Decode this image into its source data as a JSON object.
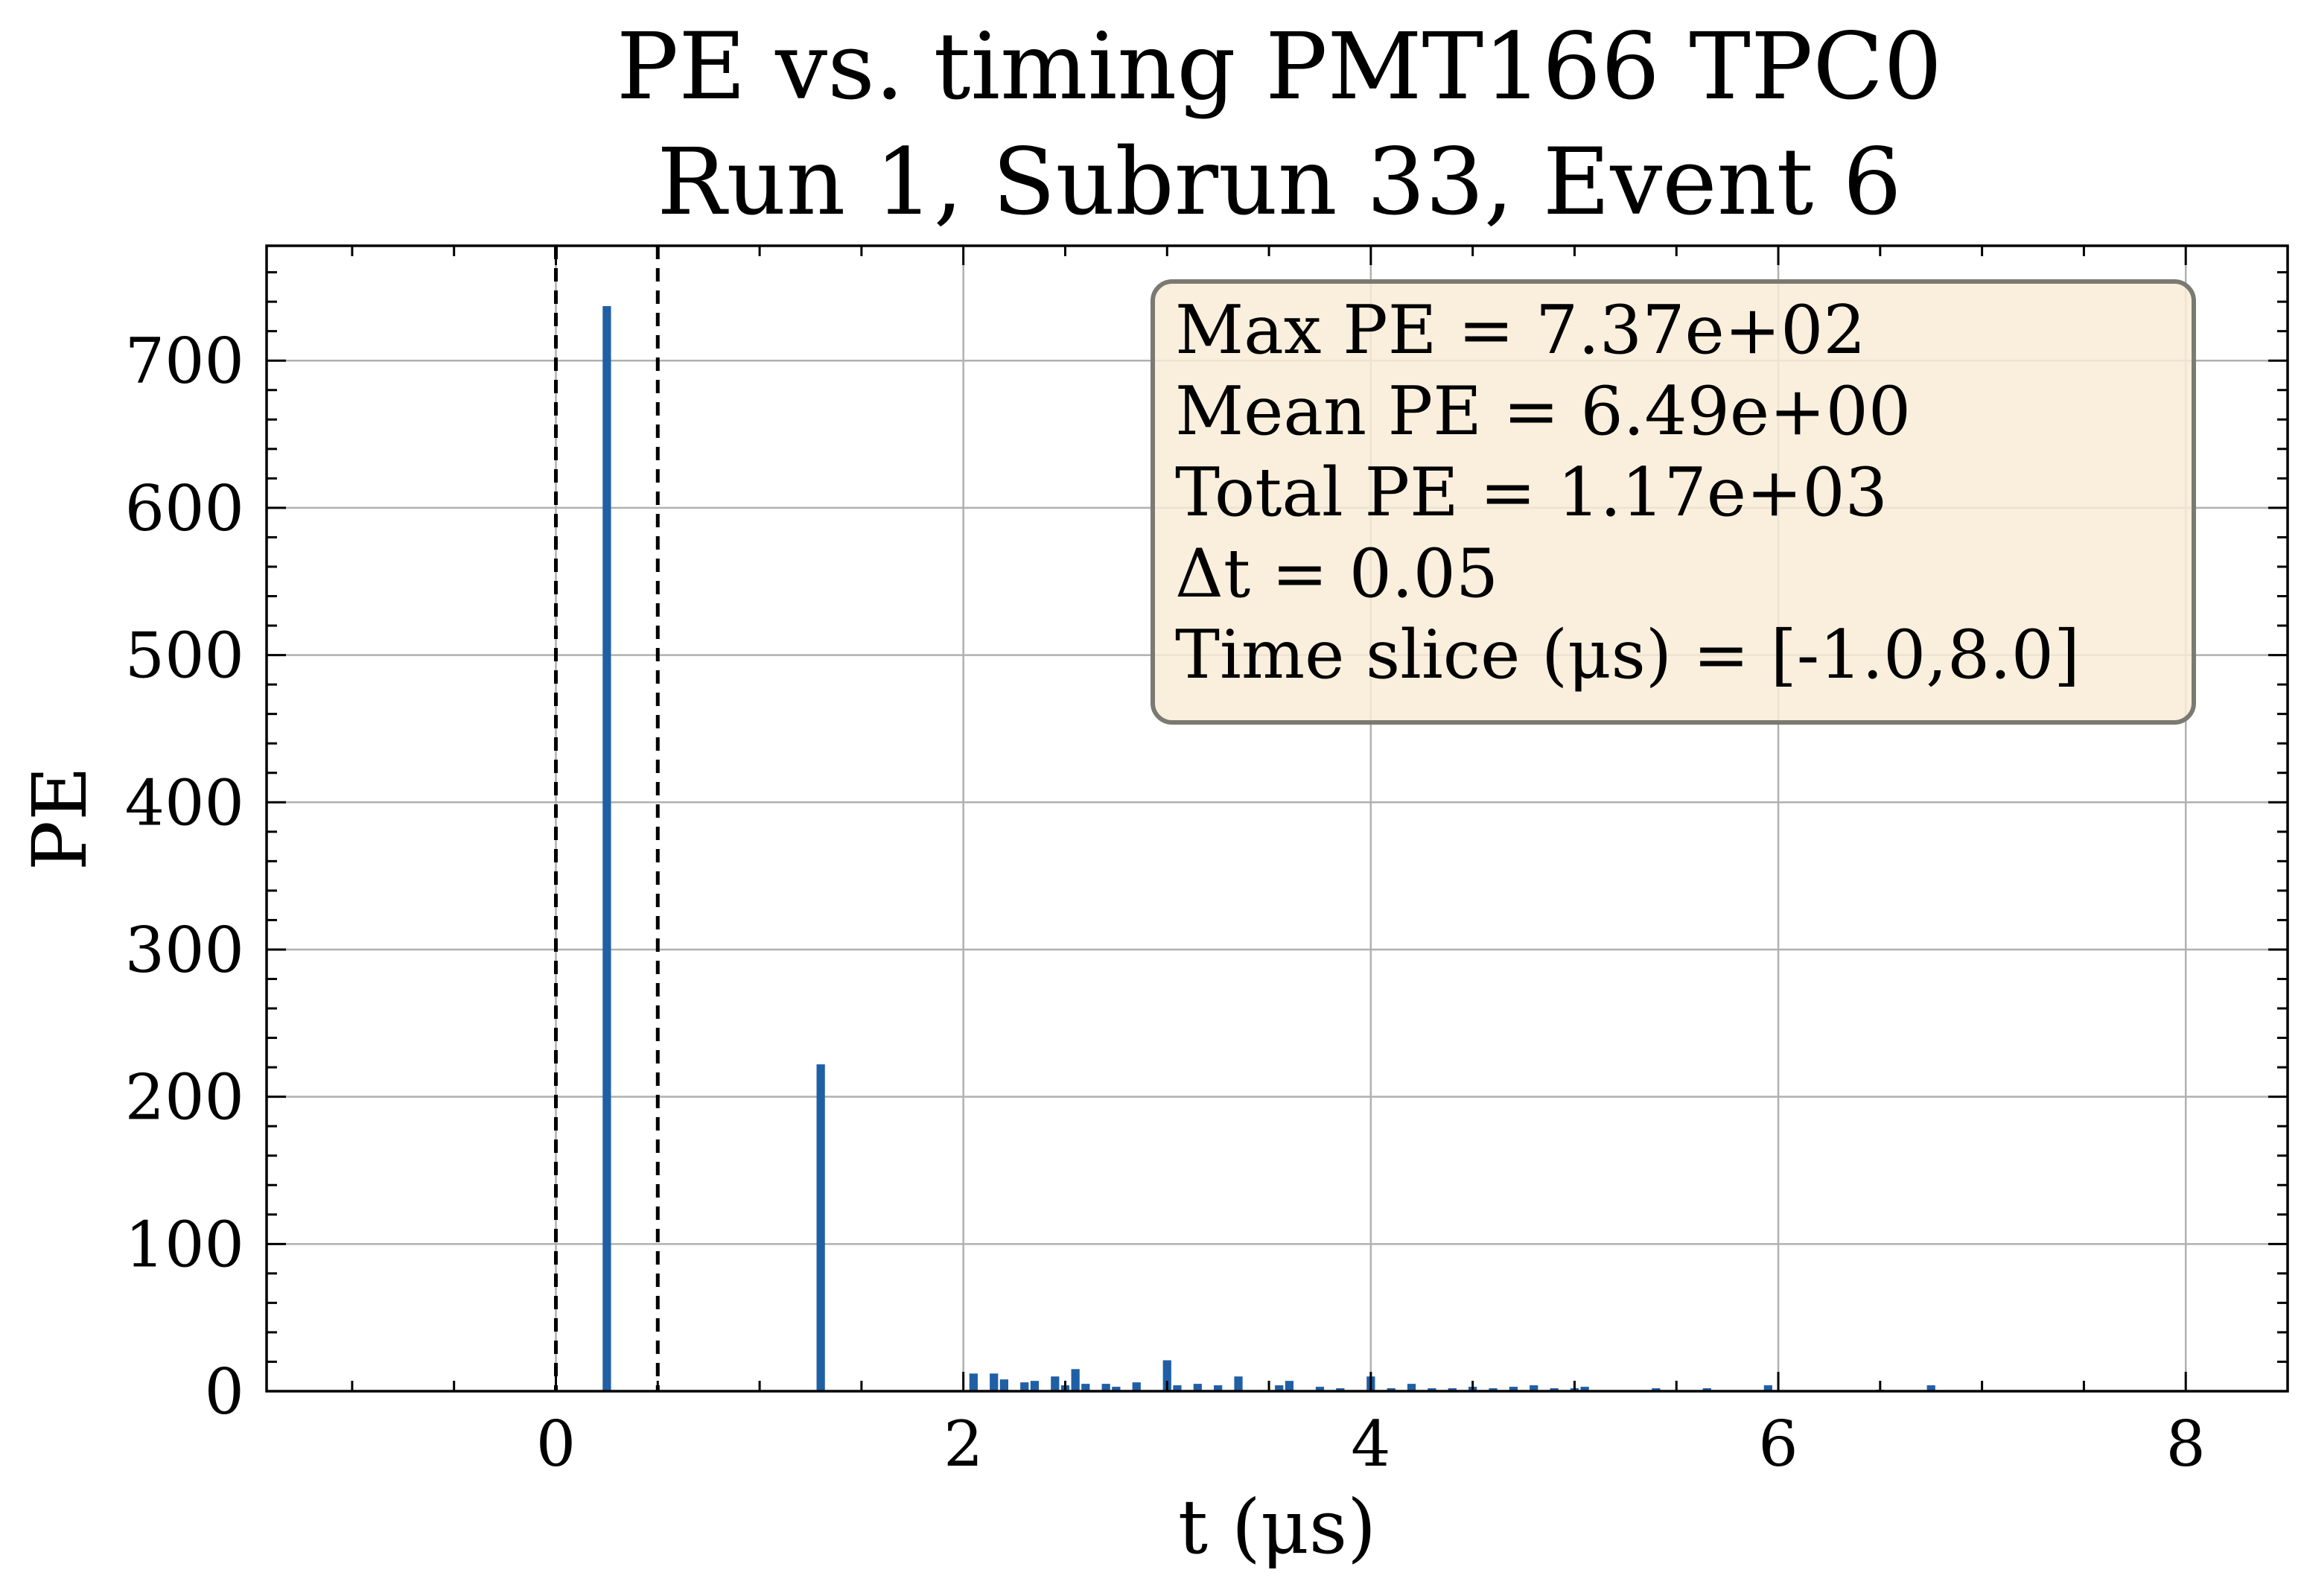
{
  "chart_data": {
    "type": "bar",
    "title": "PE vs. timing PMT166  TPC0",
    "subtitle": "Run 1, Subrun 33, Event 6",
    "xlabel": "t (μs)",
    "ylabel": "PE",
    "xlim": [
      -1.42,
      8.5
    ],
    "ylim": [
      0,
      778
    ],
    "xticks": [
      0,
      2,
      4,
      6,
      8
    ],
    "yticks": [
      0,
      100,
      200,
      300,
      400,
      500,
      600,
      700
    ],
    "grid": true,
    "bin_width": 0.05,
    "bar_color": "#1f5fa6",
    "vlines": [
      0.0,
      0.5
    ],
    "bins": [
      {
        "x": 0.25,
        "y": 737
      },
      {
        "x": 1.3,
        "y": 222
      },
      {
        "x": 2.05,
        "y": 12
      },
      {
        "x": 2.15,
        "y": 12
      },
      {
        "x": 2.2,
        "y": 8
      },
      {
        "x": 2.3,
        "y": 6
      },
      {
        "x": 2.35,
        "y": 7
      },
      {
        "x": 2.45,
        "y": 10
      },
      {
        "x": 2.5,
        "y": 4
      },
      {
        "x": 2.55,
        "y": 15
      },
      {
        "x": 2.6,
        "y": 5
      },
      {
        "x": 2.7,
        "y": 5
      },
      {
        "x": 2.75,
        "y": 3
      },
      {
        "x": 2.85,
        "y": 6
      },
      {
        "x": 3.0,
        "y": 21
      },
      {
        "x": 3.05,
        "y": 4
      },
      {
        "x": 3.15,
        "y": 5
      },
      {
        "x": 3.25,
        "y": 4
      },
      {
        "x": 3.35,
        "y": 10
      },
      {
        "x": 3.55,
        "y": 4
      },
      {
        "x": 3.6,
        "y": 7
      },
      {
        "x": 3.75,
        "y": 3
      },
      {
        "x": 3.85,
        "y": 2
      },
      {
        "x": 4.0,
        "y": 10
      },
      {
        "x": 4.1,
        "y": 2
      },
      {
        "x": 4.2,
        "y": 5
      },
      {
        "x": 4.3,
        "y": 2
      },
      {
        "x": 4.4,
        "y": 2
      },
      {
        "x": 4.5,
        "y": 3
      },
      {
        "x": 4.6,
        "y": 2
      },
      {
        "x": 4.7,
        "y": 3
      },
      {
        "x": 4.8,
        "y": 4
      },
      {
        "x": 4.9,
        "y": 2
      },
      {
        "x": 5.0,
        "y": 2
      },
      {
        "x": 5.05,
        "y": 3
      },
      {
        "x": 5.4,
        "y": 2
      },
      {
        "x": 5.65,
        "y": 2
      },
      {
        "x": 5.95,
        "y": 4
      },
      {
        "x": 6.5,
        "y": 1
      },
      {
        "x": 6.75,
        "y": 4
      }
    ],
    "stats_box": {
      "lines": [
        "Max PE  = 7.37e+02",
        "Mean PE  = 6.49e+00",
        "Total PE  = 1.17e+03",
        "Δt  = 0.05",
        "Time slice (μs)  = [-1.0,8.0]"
      ],
      "placement": "top-right"
    }
  }
}
